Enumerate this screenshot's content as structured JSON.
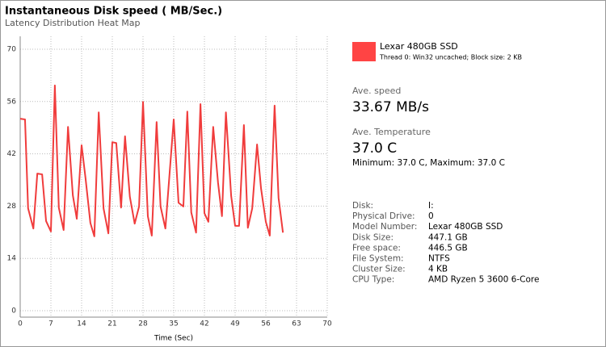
{
  "header": {
    "title": "Instantaneous Disk speed ( MB/Sec.)",
    "subtitle": "Latency Distribution Heat Map"
  },
  "chart_data": {
    "type": "line",
    "xlabel": "Time (Sec)",
    "x": [
      0,
      1.1,
      1.8,
      3,
      3.9,
      5,
      5.9,
      7,
      7.9,
      8.8,
      9.9,
      10.9,
      12,
      12.9,
      14,
      14.9,
      16,
      16.9,
      17.9,
      19,
      20.1,
      21,
      21.9,
      23,
      23.9,
      25,
      26.1,
      27.1,
      28,
      29.1,
      30,
      31.1,
      32,
      33.1,
      35,
      36.1,
      37.2,
      38.1,
      39,
      40.1,
      41.1,
      42,
      42.9,
      44,
      45.1,
      46,
      46.9,
      48.1,
      49,
      49.9,
      51,
      51.9,
      52.9,
      54,
      54.9,
      56,
      56.9,
      58,
      58.9,
      59.9
    ],
    "series": [
      {
        "name": "Lexar 480GB SSD",
        "color": "#f03c3c",
        "values": [
          51.4,
          51.2,
          27.4,
          22,
          36.7,
          36.5,
          24,
          21.2,
          60.3,
          27.6,
          21.6,
          49.2,
          30.9,
          24.6,
          44.3,
          35.4,
          23.5,
          19.9,
          53.1,
          27.4,
          20.7,
          45.1,
          44.9,
          27.6,
          46.7,
          30.5,
          23.3,
          27.9,
          55.9,
          25.3,
          20.1,
          50.5,
          27.9,
          22,
          51.2,
          28.9,
          27.9,
          53.3,
          26.3,
          20.9,
          55.3,
          26.1,
          23.8,
          49.2,
          34.3,
          25.3,
          53.1,
          30.7,
          22.7,
          22.7,
          49.7,
          22.2,
          27.4,
          44.5,
          32.8,
          23.8,
          20.1,
          54.9,
          30.2,
          20.9
        ]
      }
    ],
    "xlim": [
      0,
      70
    ],
    "ylim": [
      0,
      70
    ],
    "xticks": [
      0,
      7,
      14,
      21,
      28,
      35,
      42,
      49,
      56,
      63,
      70
    ],
    "yticks": [
      0,
      14,
      28,
      42,
      56,
      70
    ],
    "grid": true
  },
  "legend": {
    "detail": "Thread 0: Win32 uncached; Block size: 2 KB"
  },
  "stats": {
    "speed_label": "Ave. speed",
    "speed_value": "33.67 MB/s",
    "temp_label": "Ave. Temperature",
    "temp_value": "37.0 C",
    "temp_range": "Minimum: 37.0 C, Maximum: 37.0 C"
  },
  "info": [
    [
      "Disk:",
      "I:"
    ],
    [
      "Physical Drive:",
      "0"
    ],
    [
      "Model Number:",
      "Lexar 480GB SSD"
    ],
    [
      "Disk Size:",
      "447.1 GB"
    ],
    [
      "Free space:",
      "446.5 GB"
    ],
    [
      "File System:",
      "NTFS"
    ],
    [
      "Cluster Size:",
      "4 KB"
    ],
    [
      "CPU Type:",
      "AMD Ryzen 5 3600 6-Core"
    ]
  ]
}
